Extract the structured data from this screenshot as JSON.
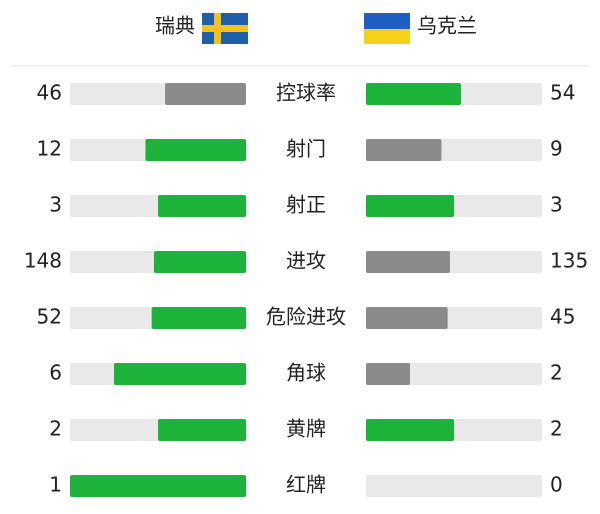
{
  "header": {
    "home": "瑞典",
    "away": "乌克兰"
  },
  "stats": [
    {
      "label": "控球率",
      "home": 46,
      "away": 54
    },
    {
      "label": "射门",
      "home": 12,
      "away": 9
    },
    {
      "label": "射正",
      "home": 3,
      "away": 3
    },
    {
      "label": "进攻",
      "home": 148,
      "away": 135
    },
    {
      "label": "危险进攻",
      "home": 52,
      "away": 45
    },
    {
      "label": "角球",
      "home": 6,
      "away": 2
    },
    {
      "label": "黄牌",
      "home": 2,
      "away": 2
    },
    {
      "label": "红牌",
      "home": 1,
      "away": 0
    }
  ]
}
